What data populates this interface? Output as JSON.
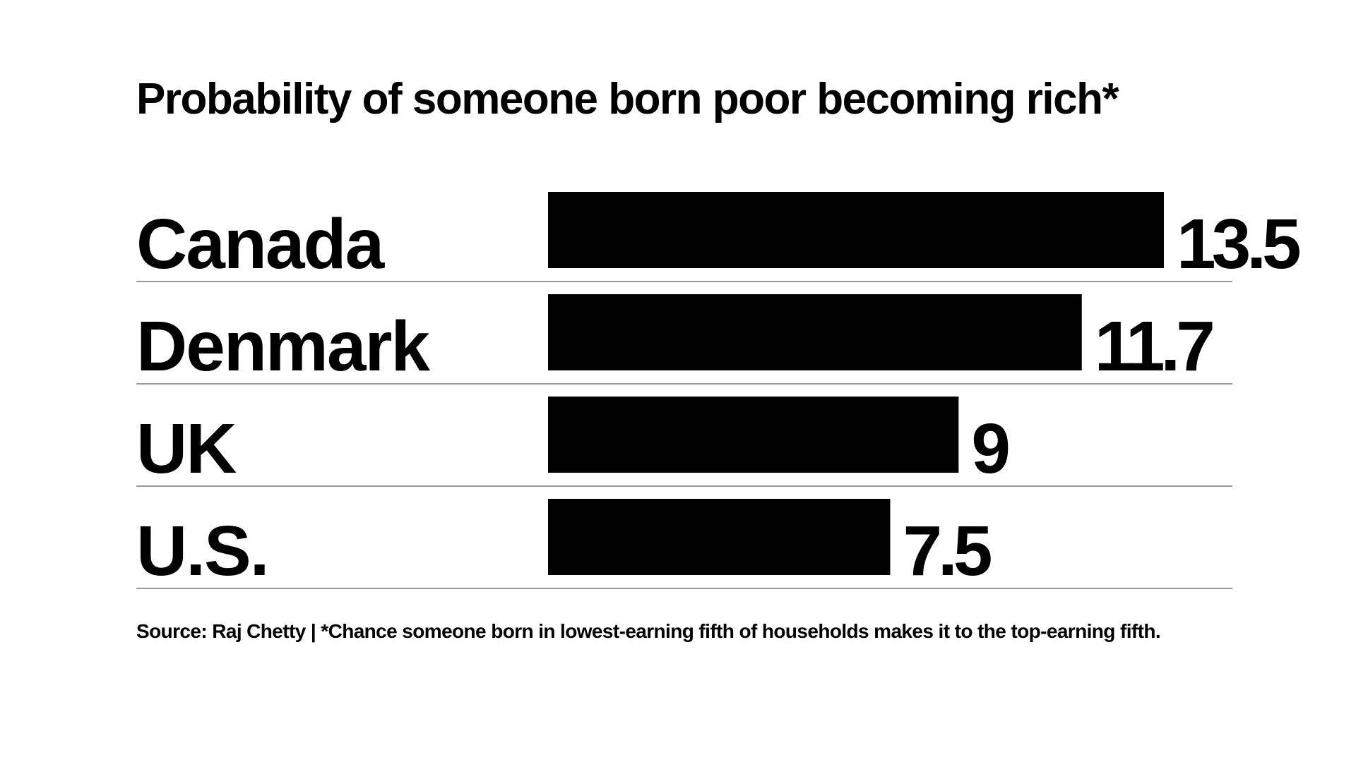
{
  "chart_data": {
    "type": "bar",
    "orientation": "horizontal",
    "title": "Probability of someone born poor becoming rich*",
    "categories": [
      "Canada",
      "Denmark",
      "UK",
      "U.S."
    ],
    "values": [
      13.5,
      11.7,
      9,
      7.5
    ],
    "value_labels": [
      "13.5",
      "11.7",
      "9",
      "7.5"
    ],
    "xlabel": "",
    "ylabel": "",
    "xlim": [
      0,
      13.5
    ],
    "grid": false,
    "legend": "none",
    "bar_color": "#000000",
    "separator_color": "#9a9a9a"
  },
  "footer": {
    "source_text": "Source: Raj Chetty | *Chance someone born in lowest-earning fifth of households makes it to the top-earning fifth."
  }
}
